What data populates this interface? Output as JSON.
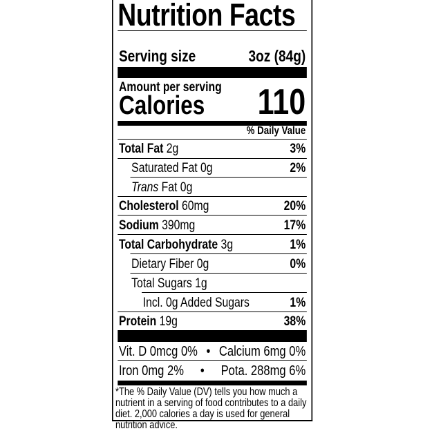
{
  "title": "Nutrition Facts",
  "serving": {
    "label": "Serving size",
    "value": "3oz (84g)"
  },
  "calories": {
    "amount_label": "Amount per serving",
    "label": "Calories",
    "value": "110"
  },
  "dv_header": "% Daily Value",
  "nutrients": [
    {
      "name": "Total Fat",
      "amount": "2g",
      "dv": "3%"
    },
    {
      "name": "Saturated Fat",
      "amount": "0g",
      "dv": "2%"
    },
    {
      "name": "Trans",
      "name2": "Fat",
      "amount": "0g",
      "dv": ""
    },
    {
      "name": "Cholesterol",
      "amount": "60mg",
      "dv": "20%"
    },
    {
      "name": "Sodium",
      "amount": "390mg",
      "dv": "17%"
    },
    {
      "name": "Total Carbohydrate",
      "amount": "3g",
      "dv": "1%"
    },
    {
      "name": "Dietary Fiber",
      "amount": "0g",
      "dv": "0%"
    },
    {
      "name": "Total Sugars",
      "amount": "1g",
      "dv": ""
    },
    {
      "name": "Incl. 0g Added Sugars",
      "amount": "",
      "dv": "1%"
    },
    {
      "name": "Protein",
      "amount": "19g",
      "dv": "38%"
    }
  ],
  "vitamins": [
    {
      "left": "Vit. D 0mcg 0%",
      "bullet": "•",
      "right": "Calcium 6mg 0%"
    },
    {
      "left": "Iron 0mg 2%",
      "bullet": "•",
      "right": "Pota. 288mg 6%"
    }
  ],
  "footnote": "*The % Daily Value (DV) tells you how much a nutrient in a serving of food contributes to a daily diet. 2,000 calories a day is used for general nutrition advice."
}
